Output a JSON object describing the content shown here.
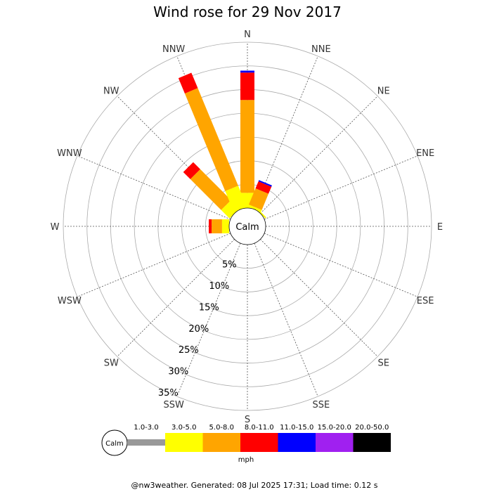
{
  "title": "Wind rose for 29 Nov 2017",
  "calm_label": "Calm",
  "footer": "@nw3weather. Generated: 08 Jul 2025 17:31; Load time: 0.12 s",
  "legend": {
    "calm_label": "Calm",
    "unit": "mph",
    "bins": [
      {
        "label": "1.0-3.0",
        "color": "#999999"
      },
      {
        "label": "3.0-5.0",
        "color": "#ffff00"
      },
      {
        "label": "5.0-8.0",
        "color": "#ffa500"
      },
      {
        "label": "8.0-11.0",
        "color": "#ff0000"
      },
      {
        "label": "11.0-15.0",
        "color": "#0000ff"
      },
      {
        "label": "15.0-20.0",
        "color": "#a020f0"
      },
      {
        "label": "20.0-50.0",
        "color": "#000000"
      }
    ]
  },
  "chart_data": {
    "type": "windrose",
    "directions": [
      "N",
      "NNE",
      "NE",
      "ENE",
      "E",
      "ESE",
      "SE",
      "SSE",
      "S",
      "SSW",
      "SW",
      "WSW",
      "W",
      "WNW",
      "NW",
      "NNW"
    ],
    "ring_labels": [
      "5%",
      "10%",
      "15%",
      "20%",
      "25%",
      "30%",
      "35%"
    ],
    "rings": [
      5,
      10,
      15,
      20,
      25,
      30,
      35
    ],
    "rmax": 35,
    "calm_percent": 2,
    "series": [
      {
        "name": "1.0-3.0",
        "color": "#999999",
        "values": [
          0,
          0,
          0,
          0,
          0,
          0,
          0,
          0,
          0,
          0,
          0,
          0,
          0,
          0,
          0,
          0
        ]
      },
      {
        "name": "3.0-5.0",
        "color": "#ffff00",
        "values": [
          3.2,
          0.5,
          0.3,
          0,
          0,
          0,
          0,
          0,
          0,
          0,
          0,
          0,
          1.5,
          0,
          2.5,
          4.8
        ]
      },
      {
        "name": "5.0-8.0",
        "color": "#ffa500",
        "values": [
          19.6,
          3.7,
          0,
          0,
          0,
          0,
          0,
          0,
          0,
          0,
          0,
          0,
          2.2,
          0,
          9.2,
          22.3
        ]
      },
      {
        "name": "8.0-11.0",
        "color": "#ff0000",
        "values": [
          5.8,
          1.6,
          0,
          0,
          0,
          0,
          0,
          0,
          0,
          0,
          0,
          0,
          0.6,
          0,
          2.1,
          3.5
        ]
      },
      {
        "name": "11.0-15.0",
        "color": "#0000ff",
        "values": [
          0.4,
          0.3,
          0,
          0,
          0,
          0,
          0,
          0,
          0,
          0,
          0,
          0,
          0,
          0,
          0,
          0
        ]
      },
      {
        "name": "15.0-20.0",
        "color": "#a020f0",
        "values": [
          0,
          0,
          0,
          0,
          0,
          0,
          0,
          0,
          0,
          0,
          0,
          0,
          0,
          0,
          0,
          0
        ]
      },
      {
        "name": "20.0-50.0",
        "color": "#000000",
        "values": [
          0,
          0,
          0,
          0,
          0,
          0,
          0,
          0,
          0,
          0,
          0,
          0,
          0,
          0,
          0,
          0
        ]
      }
    ]
  }
}
